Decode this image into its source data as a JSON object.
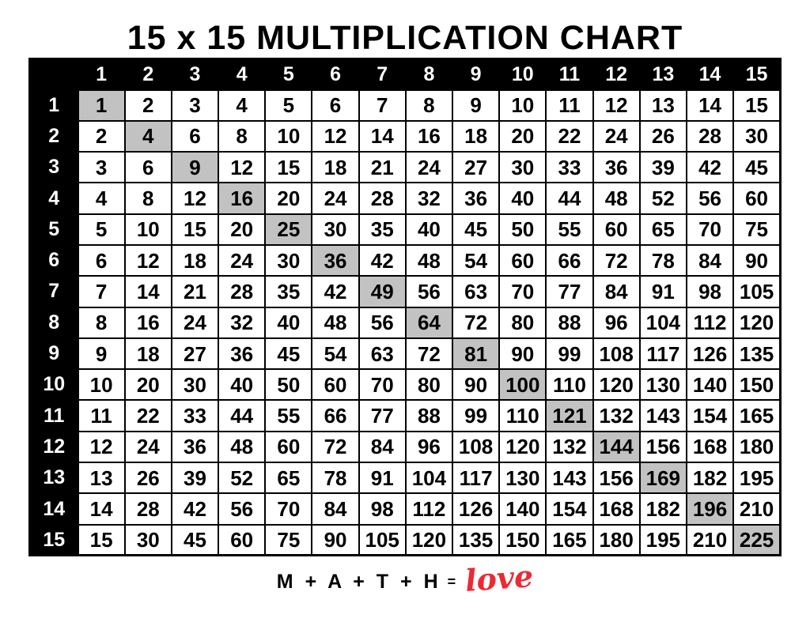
{
  "title": {
    "text": "15 x 15 MULTIPLICATION CHART"
  },
  "table": {
    "corner_label": "",
    "column_headers": [
      "1",
      "2",
      "3",
      "4",
      "5",
      "6",
      "7",
      "8",
      "9",
      "10",
      "11",
      "12",
      "13",
      "14",
      "15"
    ],
    "row_headers": [
      "1",
      "2",
      "3",
      "4",
      "5",
      "6",
      "7",
      "8",
      "9",
      "10",
      "11",
      "12",
      "13",
      "14",
      "15"
    ],
    "rows": [
      [
        1,
        2,
        3,
        4,
        5,
        6,
        7,
        8,
        9,
        10,
        11,
        12,
        13,
        14,
        15
      ],
      [
        2,
        4,
        6,
        8,
        10,
        12,
        14,
        16,
        18,
        20,
        22,
        24,
        26,
        28,
        30
      ],
      [
        3,
        6,
        9,
        12,
        15,
        18,
        21,
        24,
        27,
        30,
        33,
        36,
        39,
        42,
        45
      ],
      [
        4,
        8,
        12,
        16,
        20,
        24,
        28,
        32,
        36,
        40,
        44,
        48,
        52,
        56,
        60
      ],
      [
        5,
        10,
        15,
        20,
        25,
        30,
        35,
        40,
        45,
        50,
        55,
        60,
        65,
        70,
        75
      ],
      [
        6,
        12,
        18,
        24,
        30,
        36,
        42,
        48,
        54,
        60,
        66,
        72,
        78,
        84,
        90
      ],
      [
        7,
        14,
        21,
        28,
        35,
        42,
        49,
        56,
        63,
        70,
        77,
        84,
        91,
        98,
        105
      ],
      [
        8,
        16,
        24,
        32,
        40,
        48,
        56,
        64,
        72,
        80,
        88,
        96,
        104,
        112,
        120
      ],
      [
        9,
        18,
        27,
        36,
        45,
        54,
        63,
        72,
        81,
        90,
        99,
        108,
        117,
        126,
        135
      ],
      [
        10,
        20,
        30,
        40,
        50,
        60,
        70,
        80,
        90,
        100,
        110,
        120,
        130,
        140,
        150
      ],
      [
        11,
        22,
        33,
        44,
        55,
        66,
        77,
        88,
        99,
        110,
        121,
        132,
        143,
        154,
        165
      ],
      [
        12,
        24,
        36,
        48,
        60,
        72,
        84,
        96,
        108,
        120,
        132,
        144,
        156,
        168,
        180
      ],
      [
        13,
        26,
        39,
        52,
        65,
        78,
        91,
        104,
        117,
        130,
        143,
        156,
        169,
        182,
        195
      ],
      [
        14,
        28,
        42,
        56,
        70,
        84,
        98,
        112,
        126,
        140,
        154,
        168,
        182,
        196,
        210
      ],
      [
        15,
        30,
        45,
        60,
        75,
        90,
        105,
        120,
        135,
        150,
        165,
        180,
        195,
        210,
        225
      ]
    ],
    "highlight_rule": "diagonal-perfect-squares",
    "colors": {
      "header_bg": "#000000",
      "header_text": "#ffffff",
      "cell_bg": "#ffffff",
      "cell_text": "#000000",
      "diagonal_bg": "#c2c2c2",
      "border": "#000000"
    }
  },
  "footer": {
    "equation": "M + A + T + H",
    "equals": "=",
    "love": "love",
    "love_color": "#ee2933"
  }
}
